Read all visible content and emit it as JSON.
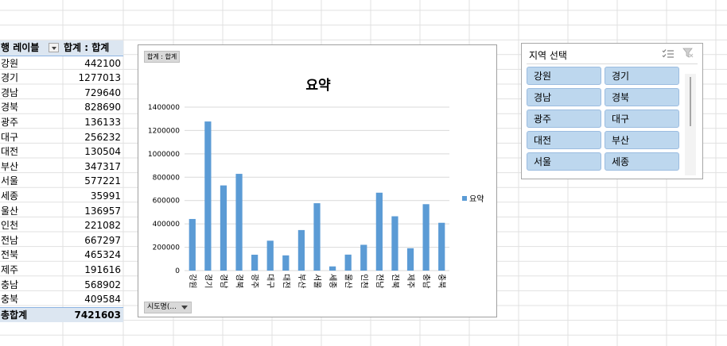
{
  "pivot": {
    "header_row_label": "행 레이블",
    "header_value_label": "합계 : 합계",
    "rows": [
      {
        "label": "강원",
        "value": "442100"
      },
      {
        "label": "경기",
        "value": "1277013"
      },
      {
        "label": "경남",
        "value": "729640"
      },
      {
        "label": "경북",
        "value": "828690"
      },
      {
        "label": "광주",
        "value": "136133"
      },
      {
        "label": "대구",
        "value": "256232"
      },
      {
        "label": "대전",
        "value": "130504"
      },
      {
        "label": "부산",
        "value": "347317"
      },
      {
        "label": "서울",
        "value": "577221"
      },
      {
        "label": "세종",
        "value": "35991"
      },
      {
        "label": "울산",
        "value": "136957"
      },
      {
        "label": "인천",
        "value": "221082"
      },
      {
        "label": "전남",
        "value": "667297"
      },
      {
        "label": "전북",
        "value": "465324"
      },
      {
        "label": "제주",
        "value": "191616"
      },
      {
        "label": "충남",
        "value": "568902"
      },
      {
        "label": "충북",
        "value": "409584"
      }
    ],
    "total_label": "총합계",
    "total_value": "7421603"
  },
  "chart": {
    "field_button": "합계 : 합계",
    "axis_field_button": "시도명(...",
    "legend_label": "요약",
    "bar_color": "#5b9bd5"
  },
  "chart_data": {
    "type": "bar",
    "title": "요약",
    "categories": [
      "강원",
      "경기",
      "경남",
      "경북",
      "광주",
      "대구",
      "대전",
      "부산",
      "서울",
      "세종",
      "울산",
      "인천",
      "전남",
      "전북",
      "제주",
      "충남",
      "충북"
    ],
    "series": [
      {
        "name": "요약",
        "values": [
          442100,
          1277013,
          729640,
          828690,
          136133,
          256232,
          130504,
          347317,
          577221,
          35991,
          136957,
          221082,
          667297,
          465324,
          191616,
          568902,
          409584
        ]
      }
    ],
    "ylim": [
      0,
      1400000
    ],
    "yticks": [
      "0",
      "200000",
      "400000",
      "600000",
      "800000",
      "1000000",
      "1200000",
      "1400000"
    ],
    "grid": true,
    "legend_position": "right"
  },
  "slicer": {
    "title": "지역 선택",
    "items": [
      "강원",
      "경기",
      "경남",
      "경북",
      "광주",
      "대구",
      "대전",
      "부산",
      "서울",
      "세종"
    ],
    "item_color": "#bdd7ee"
  }
}
